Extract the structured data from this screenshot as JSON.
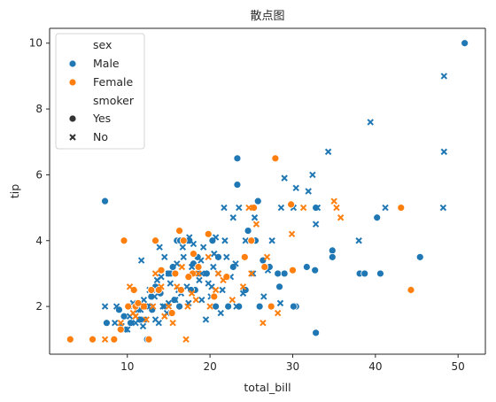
{
  "chart_data": {
    "type": "scatter",
    "title": "散点图",
    "xlabel": "total_bill",
    "ylabel": "tip",
    "xlim": [
      0.6,
      53.3
    ],
    "ylim": [
      0.55,
      10.45
    ],
    "xticks": [
      10,
      20,
      30,
      40,
      50
    ],
    "yticks": [
      2,
      4,
      6,
      8,
      10
    ],
    "grid": false,
    "legend": {
      "placement": "top-left",
      "hue_title": "sex",
      "hue_entries": [
        {
          "name": "Male",
          "color": "#1f77b4"
        },
        {
          "name": "Female",
          "color": "#ff7f0e"
        }
      ],
      "style_title": "smoker",
      "style_entries": [
        {
          "name": "Yes",
          "marker": "circle"
        },
        {
          "name": "No",
          "marker": "x"
        }
      ]
    },
    "series": [
      {
        "sex": "Male",
        "smoker": "Yes",
        "color": "#1f77b4",
        "marker": "circle",
        "points": [
          [
            50.8,
            10.0
          ],
          [
            23.3,
            6.5
          ],
          [
            7.3,
            5.2
          ],
          [
            25.8,
            5.2
          ],
          [
            23.3,
            5.7
          ],
          [
            40.2,
            4.7
          ],
          [
            34.8,
            3.7
          ],
          [
            34.8,
            3.5
          ],
          [
            45.4,
            3.5
          ],
          [
            38.1,
            3.0
          ],
          [
            38.7,
            3.0
          ],
          [
            40.6,
            3.0
          ],
          [
            31.7,
            3.2
          ],
          [
            32.7,
            3.1
          ],
          [
            28.4,
            2.6
          ],
          [
            30.4,
            2.0
          ],
          [
            30.1,
            2.0
          ],
          [
            32.8,
            1.2
          ],
          [
            26.4,
            3.4
          ],
          [
            27.2,
            3.2
          ],
          [
            28.2,
            3.0
          ],
          [
            16.0,
            4.0
          ],
          [
            16.4,
            4.0
          ],
          [
            17.5,
            4.0
          ],
          [
            20.3,
            4.0
          ],
          [
            21.0,
            3.5
          ],
          [
            18.0,
            3.3
          ],
          [
            15.0,
            3.0
          ],
          [
            13.4,
            2.6
          ],
          [
            12.8,
            2.0
          ],
          [
            11.5,
            1.6
          ],
          [
            9.6,
            1.7
          ],
          [
            7.5,
            1.5
          ],
          [
            12.4,
            1.0
          ],
          [
            11.0,
            2.0
          ],
          [
            14.0,
            2.4
          ],
          [
            18.2,
            2.5
          ],
          [
            19.4,
            3.0
          ],
          [
            22.2,
            2.0
          ],
          [
            23.5,
            2.0
          ],
          [
            24.3,
            2.5
          ],
          [
            26.0,
            2.0
          ],
          [
            16.3,
            2.0
          ],
          [
            17.7,
            2.5
          ],
          [
            20.7,
            2.0
          ],
          [
            13.0,
            1.9
          ],
          [
            15.7,
            2.2
          ],
          [
            10.4,
            1.5
          ],
          [
            29.0,
            3.0
          ],
          [
            32.8,
            5.0
          ],
          [
            24.6,
            4.3
          ],
          [
            25.5,
            4.0
          ],
          [
            18.5,
            3.5
          ],
          [
            22.8,
            3.2
          ],
          [
            19.6,
            3.0
          ],
          [
            15.5,
            3.2
          ],
          [
            12.9,
            2.3
          ],
          [
            10.3,
            2.0
          ],
          [
            9.0,
            1.9
          ]
        ]
      },
      {
        "sex": "Male",
        "smoker": "No",
        "color": "#1f77b4",
        "marker": "x",
        "points": [
          [
            48.3,
            9.0
          ],
          [
            39.4,
            7.6
          ],
          [
            48.3,
            6.7
          ],
          [
            34.3,
            6.7
          ],
          [
            32.4,
            6.0
          ],
          [
            29.0,
            5.9
          ],
          [
            30.4,
            5.6
          ],
          [
            31.9,
            5.5
          ],
          [
            28.6,
            5.0
          ],
          [
            30.1,
            5.0
          ],
          [
            33.0,
            5.0
          ],
          [
            41.2,
            5.0
          ],
          [
            48.2,
            5.0
          ],
          [
            21.7,
            5.0
          ],
          [
            23.5,
            5.0
          ],
          [
            22.8,
            4.7
          ],
          [
            25.4,
            4.7
          ],
          [
            32.8,
            4.5
          ],
          [
            24.3,
            4.0
          ],
          [
            27.5,
            4.0
          ],
          [
            38.0,
            4.0
          ],
          [
            20.7,
            4.1
          ],
          [
            17.5,
            4.1
          ],
          [
            16.7,
            3.8
          ],
          [
            13.9,
            3.8
          ],
          [
            11.7,
            3.4
          ],
          [
            15.0,
            3.0
          ],
          [
            13.6,
            2.8
          ],
          [
            12.7,
            2.5
          ],
          [
            13.3,
            2.3
          ],
          [
            14.5,
            2.0
          ],
          [
            12.2,
            2.0
          ],
          [
            11.0,
            1.5
          ],
          [
            9.7,
            1.3
          ],
          [
            8.5,
            1.5
          ],
          [
            7.3,
            2.0
          ],
          [
            8.7,
            2.0
          ],
          [
            10.7,
            2.1
          ],
          [
            12.0,
            2.2
          ],
          [
            13.0,
            2.5
          ],
          [
            14.1,
            2.9
          ],
          [
            15.6,
            3.0
          ],
          [
            16.8,
            3.5
          ],
          [
            17.8,
            3.2
          ],
          [
            18.3,
            3.0
          ],
          [
            19.0,
            3.0
          ],
          [
            19.8,
            2.7
          ],
          [
            20.4,
            3.2
          ],
          [
            21.0,
            3.0
          ],
          [
            22.0,
            3.5
          ],
          [
            18.7,
            2.8
          ],
          [
            17.2,
            2.6
          ],
          [
            16.2,
            2.5
          ],
          [
            15.0,
            2.1
          ],
          [
            14.3,
            2.0
          ],
          [
            13.4,
            1.6
          ],
          [
            11.9,
            1.4
          ],
          [
            10.3,
            1.7
          ],
          [
            9.3,
            1.4
          ],
          [
            20.1,
            2.3
          ],
          [
            21.5,
            2.5
          ],
          [
            22.5,
            2.9
          ],
          [
            23.1,
            3.3
          ],
          [
            24.0,
            2.4
          ],
          [
            25.2,
            3.0
          ],
          [
            26.5,
            2.3
          ],
          [
            27.0,
            3.1
          ],
          [
            28.5,
            2.1
          ],
          [
            20.5,
            3.6
          ],
          [
            19.2,
            3.8
          ],
          [
            18.0,
            3.9
          ],
          [
            16.5,
            2.4
          ],
          [
            15.8,
            2.2
          ],
          [
            14.8,
            1.8
          ],
          [
            12.5,
            2.0
          ],
          [
            11.3,
            1.9
          ],
          [
            10.0,
            1.3
          ],
          [
            21.3,
            1.8
          ],
          [
            19.5,
            1.6
          ],
          [
            23.2,
            2.0
          ],
          [
            17.4,
            2.1
          ],
          [
            13.8,
            1.5
          ],
          [
            12.0,
            1.6
          ],
          [
            18.9,
            3.4
          ],
          [
            15.2,
            2.7
          ],
          [
            16.0,
            3.3
          ],
          [
            21.8,
            4.0
          ],
          [
            17.0,
            4.0
          ],
          [
            14.5,
            3.5
          ],
          [
            11.6,
            1.9
          ],
          [
            20.2,
            2.6
          ],
          [
            19.0,
            2.2
          ]
        ]
      },
      {
        "sex": "Female",
        "smoker": "Yes",
        "color": "#ff7f0e",
        "marker": "circle",
        "points": [
          [
            27.9,
            6.5
          ],
          [
            43.1,
            5.0
          ],
          [
            25.3,
            5.0
          ],
          [
            44.3,
            2.5
          ],
          [
            29.8,
            5.1
          ],
          [
            30.0,
            3.1
          ],
          [
            9.6,
            4.0
          ],
          [
            13.4,
            4.0
          ],
          [
            16.3,
            4.3
          ],
          [
            16.8,
            4.0
          ],
          [
            18.0,
            3.6
          ],
          [
            17.9,
            3.0
          ],
          [
            19.8,
            4.2
          ],
          [
            14.1,
            3.1
          ],
          [
            12.0,
            2.0
          ],
          [
            11.0,
            2.0
          ],
          [
            10.1,
            2.0
          ],
          [
            9.2,
            1.3
          ],
          [
            8.4,
            1.0
          ],
          [
            5.8,
            1.0
          ],
          [
            3.1,
            1.0
          ],
          [
            12.6,
            1.0
          ],
          [
            15.4,
            1.8
          ],
          [
            13.8,
            2.5
          ],
          [
            16.5,
            2.5
          ],
          [
            17.4,
            2.9
          ],
          [
            18.6,
            3.2
          ],
          [
            20.5,
            2.3
          ],
          [
            22.0,
            2.9
          ],
          [
            25.0,
            4.0
          ],
          [
            24.2,
            3.5
          ],
          [
            26.6,
            3.2
          ],
          [
            27.4,
            2.0
          ],
          [
            10.8,
            2.5
          ],
          [
            12.9,
            2.5
          ],
          [
            15.8,
            3.0
          ],
          [
            11.3,
            2.1
          ]
        ]
      },
      {
        "sex": "Female",
        "smoker": "No",
        "color": "#ff7f0e",
        "marker": "x",
        "points": [
          [
            35.0,
            5.2
          ],
          [
            35.3,
            5.0
          ],
          [
            35.8,
            4.7
          ],
          [
            29.9,
            4.2
          ],
          [
            31.3,
            5.0
          ],
          [
            24.7,
            5.0
          ],
          [
            25.6,
            4.5
          ],
          [
            26.9,
            3.5
          ],
          [
            20.7,
            2.5
          ],
          [
            17.3,
            2.0
          ],
          [
            17.1,
            1.0
          ],
          [
            14.5,
            1.7
          ],
          [
            13.1,
            2.0
          ],
          [
            12.3,
            1.6
          ],
          [
            10.3,
            2.6
          ],
          [
            9.2,
            1.5
          ],
          [
            7.3,
            1.0
          ],
          [
            18.6,
            3.0
          ],
          [
            19.8,
            3.5
          ],
          [
            21.0,
            3.0
          ],
          [
            22.7,
            2.2
          ],
          [
            26.4,
            1.5
          ],
          [
            28.2,
            1.8
          ],
          [
            16.0,
            2.6
          ],
          [
            15.0,
            2.0
          ],
          [
            14.1,
            2.6
          ],
          [
            11.0,
            1.7
          ],
          [
            12.0,
            2.0
          ],
          [
            13.4,
            3.0
          ],
          [
            16.6,
            3.2
          ],
          [
            18.3,
            2.2
          ],
          [
            20.0,
            2.0
          ],
          [
            24.0,
            2.6
          ],
          [
            25.0,
            3.0
          ],
          [
            10.7,
            1.8
          ],
          [
            17.8,
            2.4
          ],
          [
            21.6,
            2.8
          ],
          [
            15.5,
            1.5
          ]
        ]
      }
    ]
  }
}
